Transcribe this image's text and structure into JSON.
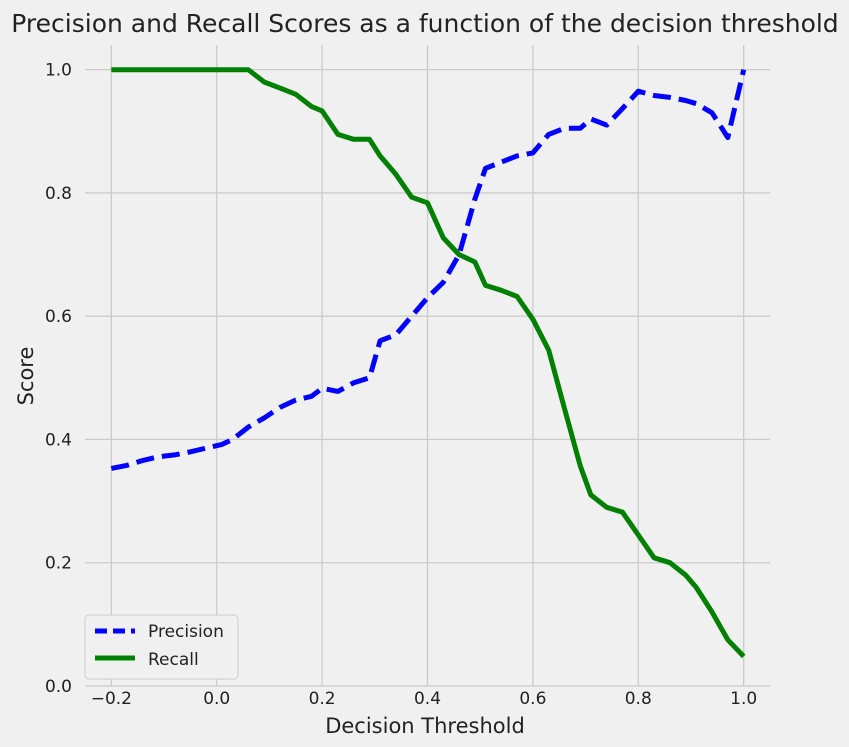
{
  "chart_data": {
    "type": "line",
    "title": "Precision and Recall Scores as a function of the decision threshold",
    "xlabel": "Decision Threshold",
    "ylabel": "Score",
    "xlim": [
      -0.25,
      1.05
    ],
    "ylim": [
      0.0,
      1.04
    ],
    "xticks": [
      -0.2,
      0.0,
      0.2,
      0.4,
      0.6,
      0.8,
      1.0
    ],
    "xtick_labels": [
      "−0.2",
      "0.0",
      "0.2",
      "0.4",
      "0.6",
      "0.8",
      "1.0"
    ],
    "yticks": [
      0.0,
      0.2,
      0.4,
      0.6,
      0.8,
      1.0
    ],
    "ytick_labels": [
      "0.0",
      "0.2",
      "0.4",
      "0.6",
      "0.8",
      "1.0"
    ],
    "grid": true,
    "legend_position": "lower-left",
    "series": [
      {
        "name": "Precision",
        "color": "#0000ff",
        "style": "dashed",
        "x": [
          -0.2,
          -0.17,
          -0.14,
          -0.11,
          -0.08,
          -0.05,
          -0.02,
          0.01,
          0.03,
          0.06,
          0.09,
          0.12,
          0.15,
          0.18,
          0.2,
          0.23,
          0.26,
          0.29,
          0.31,
          0.34,
          0.37,
          0.4,
          0.43,
          0.46,
          0.49,
          0.51,
          0.54,
          0.57,
          0.6,
          0.63,
          0.66,
          0.69,
          0.71,
          0.74,
          0.77,
          0.8,
          0.83,
          0.86,
          0.89,
          0.91,
          0.94,
          0.97,
          1.0
        ],
        "y": [
          0.353,
          0.358,
          0.366,
          0.372,
          0.375,
          0.38,
          0.386,
          0.392,
          0.4,
          0.42,
          0.435,
          0.452,
          0.464,
          0.47,
          0.483,
          0.478,
          0.492,
          0.5,
          0.56,
          0.57,
          0.6,
          0.63,
          0.655,
          0.7,
          0.79,
          0.84,
          0.85,
          0.86,
          0.865,
          0.895,
          0.905,
          0.905,
          0.92,
          0.91,
          0.937,
          0.965,
          0.958,
          0.955,
          0.95,
          0.945,
          0.93,
          0.89,
          1.0
        ]
      },
      {
        "name": "Recall",
        "color": "#008000",
        "style": "solid",
        "x": [
          -0.2,
          -0.17,
          -0.14,
          -0.11,
          -0.08,
          -0.05,
          -0.02,
          0.01,
          0.03,
          0.06,
          0.09,
          0.12,
          0.15,
          0.18,
          0.2,
          0.23,
          0.26,
          0.29,
          0.31,
          0.34,
          0.37,
          0.4,
          0.43,
          0.46,
          0.49,
          0.51,
          0.54,
          0.57,
          0.6,
          0.63,
          0.66,
          0.69,
          0.71,
          0.74,
          0.77,
          0.8,
          0.83,
          0.86,
          0.89,
          0.91,
          0.94,
          0.97,
          1.0
        ],
        "y": [
          1.0,
          1.0,
          1.0,
          1.0,
          1.0,
          1.0,
          1.0,
          1.0,
          1.0,
          1.0,
          0.98,
          0.97,
          0.96,
          0.94,
          0.933,
          0.895,
          0.887,
          0.887,
          0.86,
          0.83,
          0.793,
          0.784,
          0.727,
          0.7,
          0.688,
          0.65,
          0.642,
          0.632,
          0.595,
          0.545,
          0.45,
          0.357,
          0.31,
          0.29,
          0.282,
          0.245,
          0.208,
          0.2,
          0.18,
          0.16,
          0.12,
          0.075,
          0.048
        ]
      }
    ]
  }
}
